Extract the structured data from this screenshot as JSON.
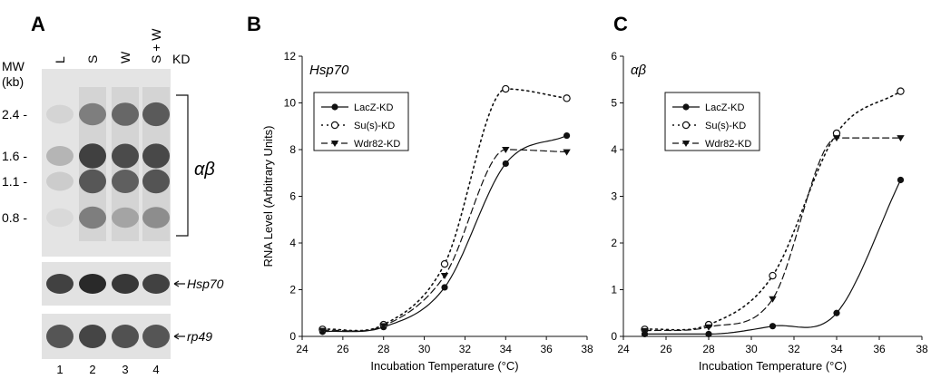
{
  "panels": {
    "a": "A",
    "b": "B",
    "c": "C"
  },
  "blot": {
    "mw_label": "MW",
    "mw_unit": "(kb)",
    "lane_labels": [
      "L",
      "S",
      "W",
      "S + W"
    ],
    "kd_label": "KD",
    "mw_markers": [
      "2.4 -",
      "1.6 -",
      "1.1 -",
      "0.8 -"
    ],
    "bracket_label": "αβ",
    "probe_labels": [
      "Hsp70",
      "rp49"
    ],
    "lane_numbers": [
      "1",
      "2",
      "3",
      "4"
    ],
    "main_intensity": [
      [
        0.08,
        0.55,
        0.7,
        0.78
      ],
      [
        0.25,
        0.95,
        0.88,
        0.9
      ],
      [
        0.12,
        0.8,
        0.75,
        0.82
      ],
      [
        0.05,
        0.55,
        0.3,
        0.45
      ]
    ],
    "hsp70_intensity": [
      0.8,
      0.92,
      0.85,
      0.8
    ],
    "rp49_intensity": [
      0.7,
      0.78,
      0.72,
      0.7
    ]
  },
  "chart_data": [
    {
      "type": "line",
      "title": "Hsp70",
      "xlabel": "Incubation Temperature (°C)",
      "ylabel": "RNA Level (Arbitrary Units)",
      "xlim": [
        24,
        38
      ],
      "ylim": [
        0,
        12
      ],
      "xticks": [
        24,
        26,
        28,
        30,
        32,
        34,
        36,
        38
      ],
      "yticks": [
        0,
        2,
        4,
        6,
        8,
        10,
        12
      ],
      "legend_position": "top-left",
      "series": [
        {
          "name": "LacZ-KD",
          "marker": "filled-circle",
          "dash": "solid",
          "x": [
            25,
            28,
            31,
            34,
            37
          ],
          "y": [
            0.2,
            0.4,
            2.1,
            7.4,
            8.6
          ]
        },
        {
          "name": "Su(s)-KD",
          "marker": "open-circle",
          "dash": "dotted",
          "x": [
            25,
            28,
            31,
            34,
            37
          ],
          "y": [
            0.3,
            0.5,
            3.1,
            10.6,
            10.2
          ]
        },
        {
          "name": "Wdr82-KD",
          "marker": "triangle-down",
          "dash": "dashed",
          "x": [
            25,
            28,
            31,
            34,
            37
          ],
          "y": [
            0.25,
            0.45,
            2.6,
            8.0,
            7.9
          ]
        }
      ]
    },
    {
      "type": "line",
      "title": "αβ",
      "xlabel": "Incubation Temperature (°C)",
      "ylabel": "",
      "xlim": [
        24,
        38
      ],
      "ylim": [
        0,
        6
      ],
      "xticks": [
        24,
        26,
        28,
        30,
        32,
        34,
        36,
        38
      ],
      "yticks": [
        0,
        1,
        2,
        3,
        4,
        5,
        6
      ],
      "legend_position": "top-left",
      "series": [
        {
          "name": "LacZ-KD",
          "marker": "filled-circle",
          "dash": "solid",
          "x": [
            25,
            28,
            31,
            34,
            37
          ],
          "y": [
            0.05,
            0.05,
            0.22,
            0.5,
            3.35
          ]
        },
        {
          "name": "Su(s)-KD",
          "marker": "open-circle",
          "dash": "dotted",
          "x": [
            25,
            28,
            31,
            34,
            37
          ],
          "y": [
            0.15,
            0.25,
            1.3,
            4.35,
            5.25
          ]
        },
        {
          "name": "Wdr82-KD",
          "marker": "triangle-down",
          "dash": "dashed",
          "x": [
            25,
            28,
            31,
            34,
            37
          ],
          "y": [
            0.12,
            0.2,
            0.8,
            4.25,
            4.25
          ]
        }
      ]
    }
  ]
}
